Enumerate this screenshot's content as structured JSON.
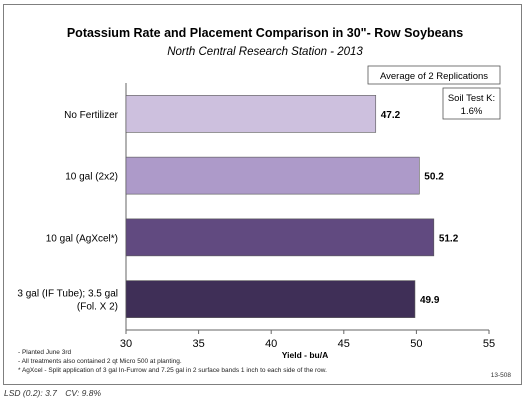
{
  "chart_data": {
    "type": "bar",
    "orientation": "horizontal",
    "title": "Potassium Rate and Placement Comparison in 30\"-  Row Soybeans",
    "subtitle": "North Central Research Station - 2013",
    "xlabel": "Yield - bu/A",
    "ylabel": "",
    "xlim": [
      30,
      55
    ],
    "x_ticks": [
      "30",
      "35",
      "40",
      "45",
      "50",
      "55"
    ],
    "grid": false,
    "categories": [
      [
        "No Fertilizer"
      ],
      [
        "10 gal (2x2)"
      ],
      [
        "10 gal (AgXcel*)"
      ],
      [
        "3 gal (IF Tube); 3.5 gal",
        "(Fol. X 2)"
      ]
    ],
    "values": [
      47.2,
      50.2,
      51.2,
      49.9
    ],
    "value_labels": [
      "47.2",
      "50.2",
      "51.2",
      "49.9"
    ],
    "bar_colors": [
      "#cdc0de",
      "#ad9ac9",
      "#614a80",
      "#3f2f57"
    ],
    "annotations": {
      "replications": "Average of 2 Replications",
      "soil_test_label": "Soil Test K:",
      "soil_test_value": "1.6%"
    }
  },
  "footnotes": [
    "- Planted June 3rd",
    "- All treatments also contained 2 qt Micro 500 at planting.",
    "* AgXcel - Split application of 3 gal In-Furrow and 7.25 gal in 2 surface bands 1 inch to each side of the row."
  ],
  "figure_id": "13-508",
  "stats": {
    "lsd": "LSD (0.2): 3.7",
    "cv": "CV: 9.8%"
  }
}
